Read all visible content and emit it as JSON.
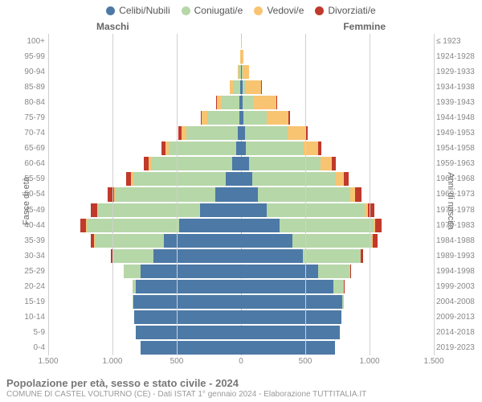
{
  "legend": [
    {
      "label": "Celibi/Nubili",
      "color": "#4d79a6"
    },
    {
      "label": "Coniugati/e",
      "color": "#b6d7a8"
    },
    {
      "label": "Vedovi/e",
      "color": "#f8c471"
    },
    {
      "label": "Divorziati/e",
      "color": "#c0392b"
    }
  ],
  "headers": {
    "male": "Maschi",
    "female": "Femmine"
  },
  "axis": {
    "left_title": "Fasce di età",
    "right_title": "Anni di nascita"
  },
  "xticks": [
    {
      "v": -1500,
      "label": "1.500"
    },
    {
      "v": -1000,
      "label": "1.000"
    },
    {
      "v": -500,
      "label": "500"
    },
    {
      "v": 0,
      "label": "0"
    },
    {
      "v": 500,
      "label": "500"
    },
    {
      "v": 1000,
      "label": "1.000"
    },
    {
      "v": 1500,
      "label": "1.500"
    }
  ],
  "xmax": 1500,
  "footer": {
    "title": "Popolazione per età, sesso e stato civile - 2024",
    "subtitle": "COMUNE DI CASTEL VOLTURNO (CE) - Dati ISTAT 1° gennaio 2024 - Elaborazione TUTTITALIA.IT"
  },
  "rows": [
    {
      "age": "100+",
      "year": "≤ 1923",
      "m": {
        "s": 0,
        "m": 0,
        "w": 1,
        "d": 0
      },
      "f": {
        "s": 0,
        "m": 0,
        "w": 2,
        "d": 0
      }
    },
    {
      "age": "95-99",
      "year": "1924-1928",
      "m": {
        "s": 0,
        "m": 3,
        "w": 3,
        "d": 0
      },
      "f": {
        "s": 2,
        "m": 2,
        "w": 15,
        "d": 0
      }
    },
    {
      "age": "90-94",
      "year": "1929-1933",
      "m": {
        "s": 2,
        "m": 15,
        "w": 10,
        "d": 0
      },
      "f": {
        "s": 5,
        "m": 5,
        "w": 55,
        "d": 0
      }
    },
    {
      "age": "85-89",
      "year": "1934-1938",
      "m": {
        "s": 5,
        "m": 55,
        "w": 25,
        "d": 0
      },
      "f": {
        "s": 10,
        "m": 25,
        "w": 120,
        "d": 2
      }
    },
    {
      "age": "80-84",
      "year": "1939-1943",
      "m": {
        "s": 10,
        "m": 140,
        "w": 40,
        "d": 3
      },
      "f": {
        "s": 15,
        "m": 80,
        "w": 180,
        "d": 5
      }
    },
    {
      "age": "75-79",
      "year": "1944-1948",
      "m": {
        "s": 15,
        "m": 250,
        "w": 40,
        "d": 8
      },
      "f": {
        "s": 20,
        "m": 180,
        "w": 170,
        "d": 10
      }
    },
    {
      "age": "70-74",
      "year": "1949-1953",
      "m": {
        "s": 25,
        "m": 400,
        "w": 40,
        "d": 20
      },
      "f": {
        "s": 30,
        "m": 330,
        "w": 140,
        "d": 20
      }
    },
    {
      "age": "65-69",
      "year": "1954-1958",
      "m": {
        "s": 40,
        "m": 520,
        "w": 30,
        "d": 30
      },
      "f": {
        "s": 40,
        "m": 450,
        "w": 110,
        "d": 25
      }
    },
    {
      "age": "60-64",
      "year": "1959-1963",
      "m": {
        "s": 70,
        "m": 630,
        "w": 20,
        "d": 35
      },
      "f": {
        "s": 60,
        "m": 560,
        "w": 85,
        "d": 30
      }
    },
    {
      "age": "55-59",
      "year": "1964-1968",
      "m": {
        "s": 120,
        "m": 720,
        "w": 15,
        "d": 40
      },
      "f": {
        "s": 90,
        "m": 650,
        "w": 60,
        "d": 40
      }
    },
    {
      "age": "50-54",
      "year": "1969-1973",
      "m": {
        "s": 200,
        "m": 780,
        "w": 10,
        "d": 45
      },
      "f": {
        "s": 130,
        "m": 720,
        "w": 40,
        "d": 50
      }
    },
    {
      "age": "45-49",
      "year": "1974-1978",
      "m": {
        "s": 320,
        "m": 790,
        "w": 8,
        "d": 50
      },
      "f": {
        "s": 200,
        "m": 760,
        "w": 25,
        "d": 55
      }
    },
    {
      "age": "40-44",
      "year": "1979-1983",
      "m": {
        "s": 480,
        "m": 720,
        "w": 5,
        "d": 45
      },
      "f": {
        "s": 300,
        "m": 730,
        "w": 15,
        "d": 50
      }
    },
    {
      "age": "35-39",
      "year": "1984-1988",
      "m": {
        "s": 600,
        "m": 540,
        "w": 2,
        "d": 30
      },
      "f": {
        "s": 400,
        "m": 620,
        "w": 8,
        "d": 35
      }
    },
    {
      "age": "30-34",
      "year": "1989-1993",
      "m": {
        "s": 680,
        "m": 320,
        "w": 0,
        "d": 15
      },
      "f": {
        "s": 480,
        "m": 450,
        "w": 3,
        "d": 20
      }
    },
    {
      "age": "25-29",
      "year": "1994-1998",
      "m": {
        "s": 780,
        "m": 130,
        "w": 0,
        "d": 5
      },
      "f": {
        "s": 600,
        "m": 250,
        "w": 0,
        "d": 8
      }
    },
    {
      "age": "20-24",
      "year": "1999-2003",
      "m": {
        "s": 820,
        "m": 25,
        "w": 0,
        "d": 0
      },
      "f": {
        "s": 720,
        "m": 80,
        "w": 0,
        "d": 2
      }
    },
    {
      "age": "15-19",
      "year": "2004-2008",
      "m": {
        "s": 840,
        "m": 2,
        "w": 0,
        "d": 0
      },
      "f": {
        "s": 790,
        "m": 8,
        "w": 0,
        "d": 0
      }
    },
    {
      "age": "10-14",
      "year": "2009-2013",
      "m": {
        "s": 830,
        "m": 0,
        "w": 0,
        "d": 0
      },
      "f": {
        "s": 780,
        "m": 0,
        "w": 0,
        "d": 0
      }
    },
    {
      "age": "5-9",
      "year": "2014-2018",
      "m": {
        "s": 820,
        "m": 0,
        "w": 0,
        "d": 0
      },
      "f": {
        "s": 770,
        "m": 0,
        "w": 0,
        "d": 0
      }
    },
    {
      "age": "0-4",
      "year": "2019-2023",
      "m": {
        "s": 780,
        "m": 0,
        "w": 0,
        "d": 0
      },
      "f": {
        "s": 730,
        "m": 0,
        "w": 0,
        "d": 0
      }
    }
  ],
  "colors": {
    "single": "#4d79a6",
    "married": "#b6d7a8",
    "widowed": "#f8c471",
    "divorced": "#c0392b",
    "grid": "#d0d0d0",
    "centerline": "#bbbbbb",
    "text": "#888888"
  }
}
